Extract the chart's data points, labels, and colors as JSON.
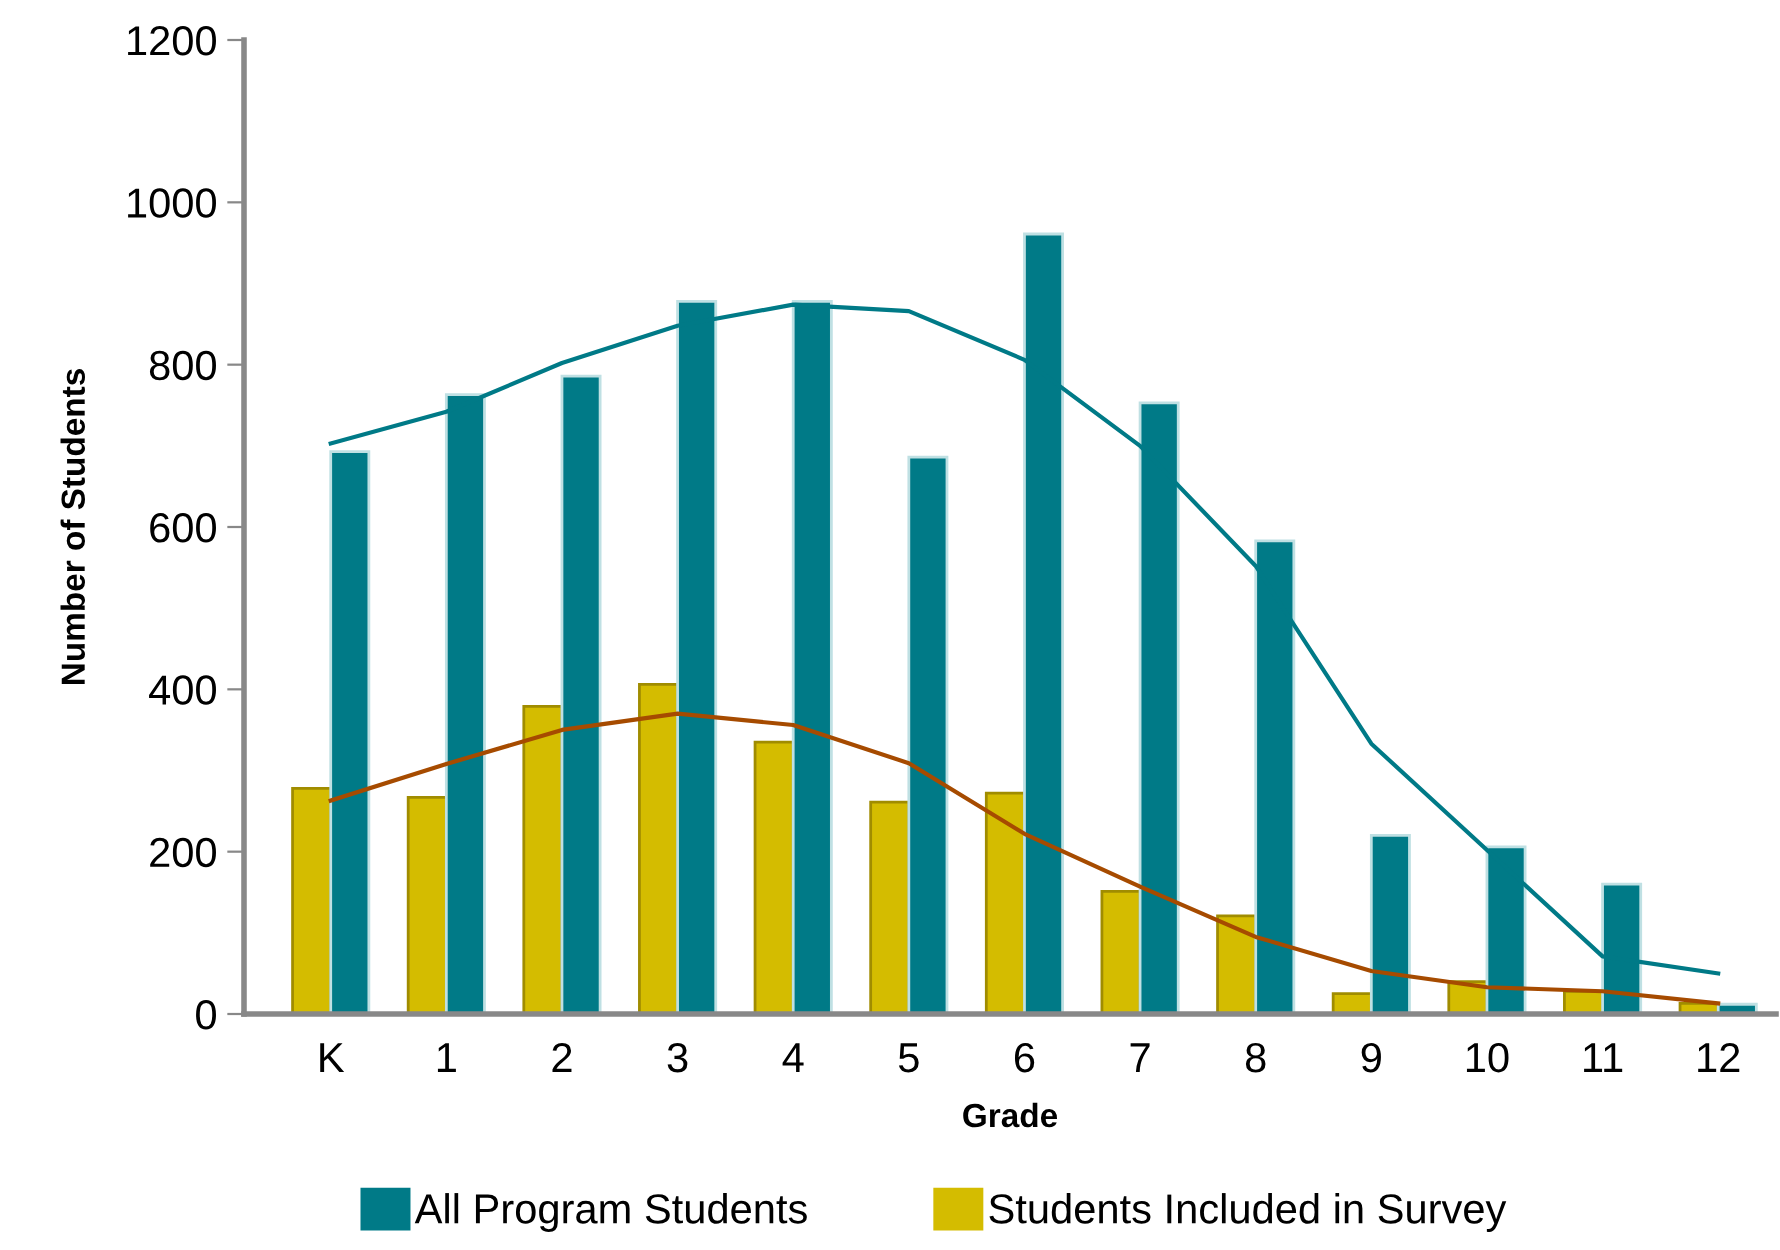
{
  "chart_data": {
    "type": "bar",
    "xlabel": "Grade",
    "ylabel": "Number of Students",
    "categories": [
      "K",
      "1",
      "2",
      "3",
      "4",
      "5",
      "6",
      "7",
      "8",
      "9",
      "10",
      "11",
      "12"
    ],
    "ylim": [
      0,
      1200
    ],
    "yticks": [
      0,
      200,
      400,
      600,
      800,
      1000,
      1200
    ],
    "grid": false,
    "legend": "bottom",
    "series": [
      {
        "name": "Students Included in Survey",
        "color": "#d4bc00",
        "values": [
          278,
          267,
          379,
          406,
          335,
          261,
          272,
          151,
          121,
          25,
          40,
          28,
          13
        ]
      },
      {
        "name": "All Program Students",
        "color": "#007a87",
        "values": [
          693,
          763,
          786,
          878,
          878,
          686,
          961,
          753,
          583,
          220,
          206,
          160,
          12
        ]
      },
      {
        "type": "line",
        "color": "#007a87",
        "x": [
          "K",
          "1",
          "2",
          "3",
          "4",
          "5",
          "6",
          "7",
          "8",
          "9",
          "10",
          "11",
          "12"
        ],
        "values": [
          703,
          742,
          802,
          848,
          874,
          866,
          806,
          700,
          552,
          333,
          202,
          71,
          50
        ]
      },
      {
        "type": "line",
        "color": "#a64b00",
        "x": [
          "K",
          "1",
          "2",
          "3",
          "4",
          "5",
          "6",
          "7",
          "8",
          "9",
          "10",
          "11",
          "12"
        ],
        "values": [
          263,
          308,
          350,
          370,
          356,
          309,
          222,
          157,
          95,
          53,
          33,
          28,
          13
        ]
      }
    ]
  }
}
